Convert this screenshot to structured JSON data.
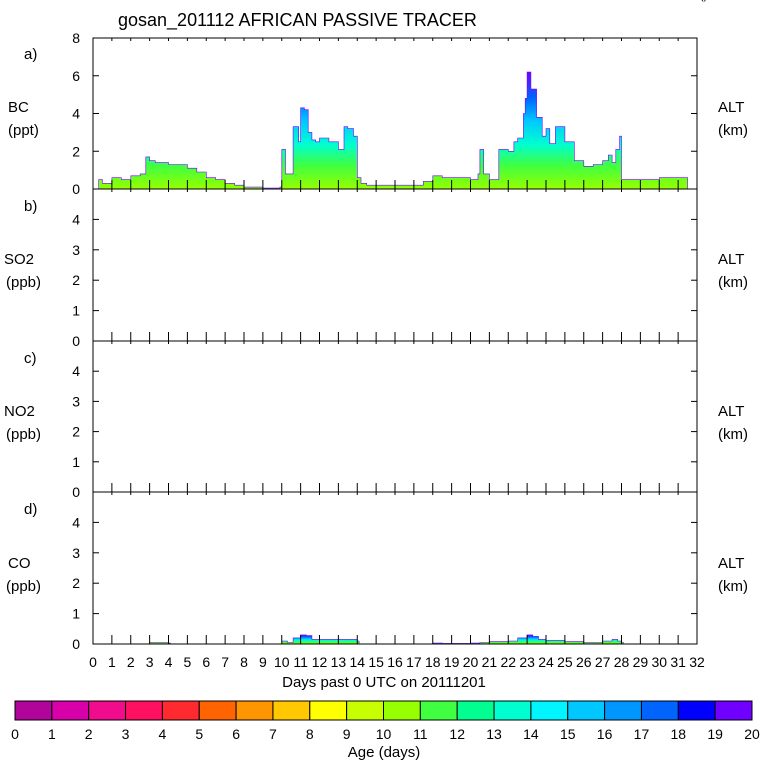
{
  "title": "gosan_201112 AFRICAN PASSIVE TRACER",
  "corner_mark": "()",
  "x_axis": {
    "label": "Days past 0 UTC on 20111201",
    "range": [
      0,
      32
    ],
    "tick_labels": [
      "0",
      "1",
      "2",
      "3",
      "4",
      "5",
      "6",
      "7",
      "8",
      "9",
      "10",
      "11",
      "12",
      "13",
      "14",
      "15",
      "16",
      "17",
      "18",
      "19",
      "20",
      "21",
      "22",
      "23",
      "24",
      "25",
      "26",
      "27",
      "28",
      "29",
      "30",
      "31",
      "32"
    ]
  },
  "colorbar": {
    "label": "Age (days)",
    "tick_labels": [
      "0",
      "1",
      "2",
      "3",
      "4",
      "5",
      "6",
      "7",
      "8",
      "9",
      "10",
      "11",
      "12",
      "13",
      "14",
      "15",
      "16",
      "17",
      "18",
      "19",
      "20"
    ],
    "colors": [
      "#800080",
      "#b0049a",
      "#d800a8",
      "#f00c8c",
      "#ff1060",
      "#ff2a30",
      "#ff6400",
      "#ff9600",
      "#ffc800",
      "#ffff00",
      "#c8ff00",
      "#96ff00",
      "#40ff40",
      "#00ff90",
      "#00ffd0",
      "#00f5ff",
      "#00c8ff",
      "#0096ff",
      "#0064ff",
      "#0000ff",
      "#7000ff"
    ]
  },
  "chart_data": [
    {
      "type": "area",
      "panel": "a)",
      "ylabel": "BC",
      "units": "(ppt)",
      "right_label": "ALT",
      "right_units": "(km)",
      "ylim": [
        0,
        8
      ],
      "yticks": [
        "0",
        "2",
        "4",
        "6",
        "8"
      ],
      "series": [
        {
          "x": [
            0,
            0.3,
            0.5,
            1,
            1.5,
            2,
            2.5,
            2.8,
            3,
            3.3,
            4,
            5,
            5.5,
            6,
            6.5,
            7,
            7.5,
            8,
            9,
            9.5,
            9.9,
            10,
            10.2,
            10.6,
            10.9,
            11,
            11.2,
            11.4,
            11.6,
            11.8,
            12,
            12.5,
            13,
            13.3,
            13.5,
            13.8,
            14,
            14.2,
            14.5,
            15,
            16,
            17,
            17.5,
            18,
            18.5,
            19,
            19.5,
            20,
            20.4,
            20.5,
            20.7,
            21,
            21.5,
            22,
            22.3,
            22.5,
            22.8,
            22.9,
            23,
            23.2,
            23.5,
            23.8,
            24,
            24.2,
            24.5,
            25,
            25.5,
            26,
            26.5,
            27,
            27.3,
            27.5,
            27.7,
            27.9,
            28,
            28.3,
            28.6,
            29,
            29.5,
            30,
            30.5,
            31,
            31.5,
            32
          ],
          "y": [
            0,
            0.5,
            0.3,
            0.6,
            0.5,
            0.7,
            0.8,
            1.7,
            1.5,
            1.4,
            1.3,
            1.1,
            0.9,
            0.6,
            0.5,
            0.3,
            0.2,
            0.1,
            0.05,
            0.05,
            0.1,
            2.1,
            0.8,
            3.3,
            2.5,
            4.3,
            4.2,
            3.0,
            2.6,
            2.5,
            2.7,
            2.5,
            2.1,
            3.3,
            3.2,
            2.8,
            0.6,
            0.3,
            0.2,
            0.2,
            0.2,
            0.2,
            0.4,
            0.7,
            0.6,
            0.6,
            0.6,
            0.5,
            0.8,
            2.1,
            0.8,
            0.5,
            2.1,
            2.0,
            2.5,
            2.7,
            4.0,
            4.8,
            6.2,
            5.3,
            3.8,
            2.8,
            3.2,
            2.4,
            3.3,
            2.5,
            1.5,
            1.2,
            1.3,
            1.5,
            1.8,
            1.4,
            2.1,
            2.8,
            0.5,
            0.5,
            0.5,
            0.5,
            0.5,
            0.6,
            0.6,
            0.6,
            0,
            0
          ]
        }
      ]
    },
    {
      "type": "area",
      "panel": "b)",
      "ylabel": "SO2",
      "units": "(ppb)",
      "right_label": "ALT",
      "right_units": "(km)",
      "ylim": [
        0,
        5
      ],
      "yticks": [
        "0",
        "1",
        "2",
        "3",
        "4"
      ],
      "series": []
    },
    {
      "type": "area",
      "panel": "c)",
      "ylabel": "NO2",
      "units": "(ppb)",
      "right_label": "ALT",
      "right_units": "(km)",
      "ylim": [
        0,
        5
      ],
      "yticks": [
        "0",
        "1",
        "2",
        "3",
        "4"
      ],
      "series": []
    },
    {
      "type": "area",
      "panel": "d)",
      "ylabel": "CO",
      "units": "(ppb)",
      "right_label": "ALT",
      "right_units": "(km)",
      "ylim": [
        0,
        5
      ],
      "yticks": [
        "0",
        "1",
        "2",
        "3",
        "4"
      ],
      "series": [
        {
          "x": [
            0,
            2.9,
            3,
            3.3,
            4,
            4.1,
            9.9,
            10,
            10.3,
            10.6,
            11,
            11.3,
            11.6,
            12,
            13,
            14,
            14.1,
            17.9,
            18,
            18.5,
            20,
            20.5,
            21,
            22,
            22.5,
            23,
            23.3,
            23.6,
            24,
            25,
            26,
            27,
            27.5,
            27.8,
            28,
            28.1,
            32
          ],
          "y": [
            0,
            0,
            0.05,
            0.05,
            0.03,
            0,
            0,
            0.1,
            0.05,
            0.2,
            0.3,
            0.28,
            0.15,
            0.15,
            0.15,
            0.1,
            0,
            0,
            0.03,
            0.02,
            0.03,
            0.05,
            0.08,
            0.1,
            0.2,
            0.3,
            0.25,
            0.15,
            0.12,
            0.08,
            0.05,
            0.1,
            0.15,
            0.1,
            0.05,
            0,
            0
          ]
        }
      ]
    }
  ]
}
